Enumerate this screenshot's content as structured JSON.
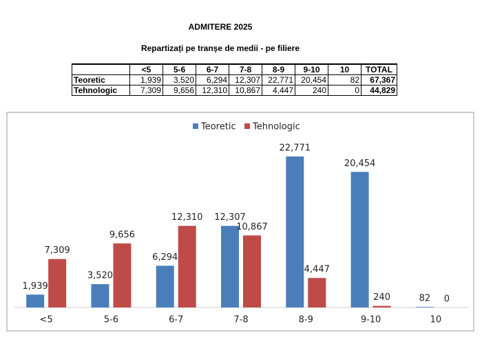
{
  "header": {
    "title": "ADMITERE 2025",
    "subtitle": "Repartizați pe tranșe de medii - pe filiere"
  },
  "table": {
    "columns": [
      "<5",
      "5-6",
      "6-7",
      "7-8",
      "8-9",
      "9-10",
      "10",
      "TOTAL"
    ],
    "rows": [
      {
        "label": "Teoretic",
        "values": [
          "1,939",
          "3,520",
          "6,294",
          "12,307",
          "22,771",
          "20,454",
          "82",
          "67,367"
        ]
      },
      {
        "label": "Tehnologic",
        "values": [
          "7,309",
          "9,656",
          "12,310",
          "10,867",
          "4,447",
          "240",
          "0",
          "44,829"
        ]
      }
    ]
  },
  "chart_data": {
    "type": "bar",
    "categories": [
      "<5",
      "5-6",
      "6-7",
      "7-8",
      "8-9",
      "9-10",
      "10"
    ],
    "series": [
      {
        "name": "Teoretic",
        "color": "#4a7ebb",
        "values": [
          1939,
          3520,
          6294,
          12307,
          22771,
          20454,
          82
        ],
        "value_labels": [
          "1,939",
          "3,520",
          "6,294",
          "12,307",
          "22,771",
          "20,454",
          "82"
        ]
      },
      {
        "name": "Tehnologic",
        "color": "#be4b48",
        "values": [
          7309,
          9656,
          12310,
          10867,
          4447,
          240,
          0
        ],
        "value_labels": [
          "7,309",
          "9,656",
          "12,310",
          "10,867",
          "4,447",
          "240",
          "0"
        ]
      }
    ],
    "legend": "top"
  }
}
